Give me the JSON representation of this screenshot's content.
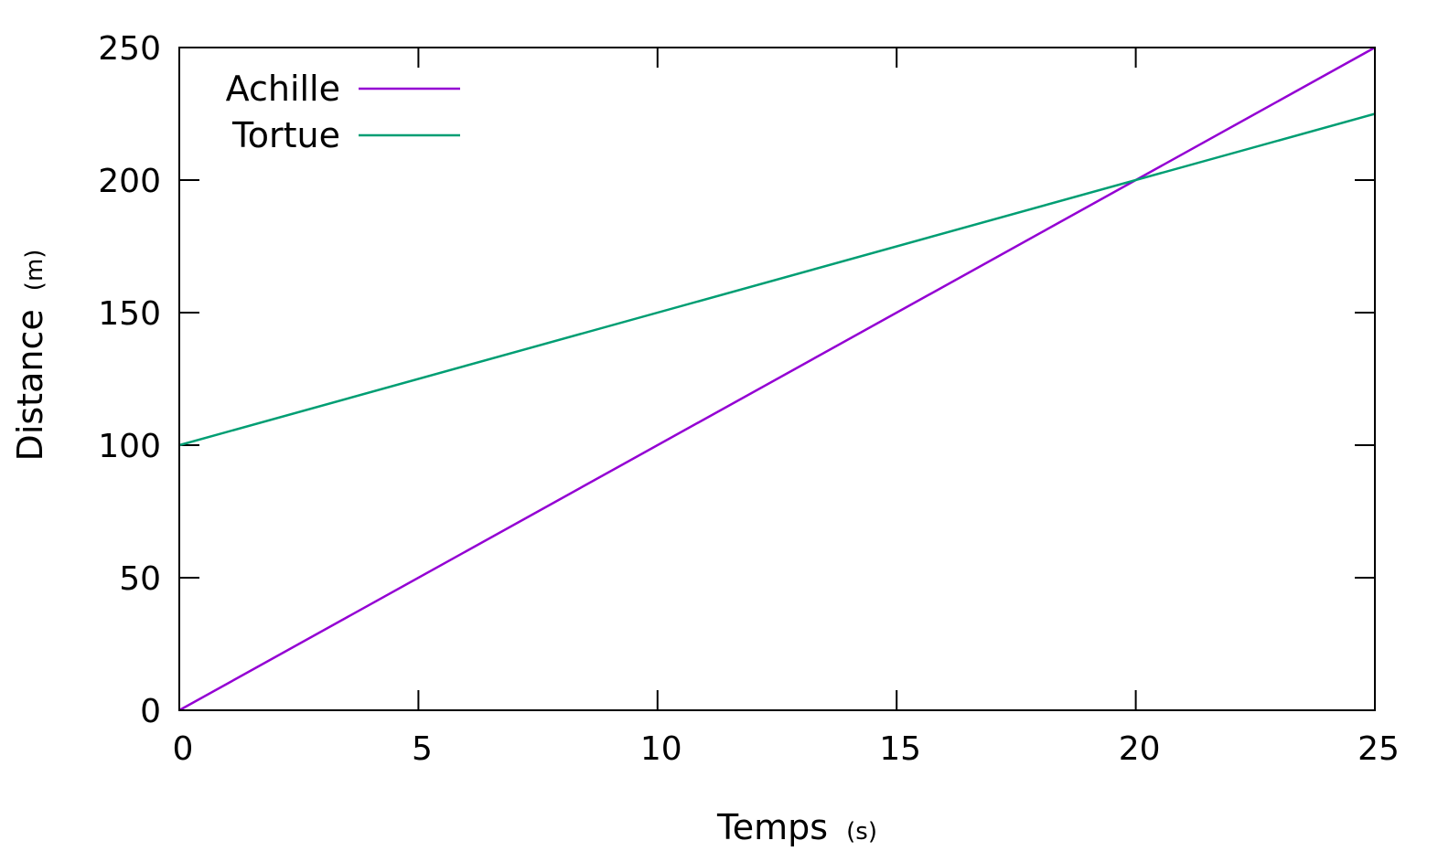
{
  "chart_data": {
    "type": "line",
    "title": "",
    "xlabel": "Temps",
    "xlabel_unit": "(s)",
    "ylabel": "Distance",
    "ylabel_unit": "(m)",
    "xlim": [
      0,
      25
    ],
    "ylim": [
      0,
      250
    ],
    "xticks": [
      0,
      5,
      10,
      15,
      20,
      25
    ],
    "yticks": [
      0,
      50,
      100,
      150,
      200,
      250
    ],
    "grid": false,
    "legend_position": "top-left",
    "series": [
      {
        "name": "Achille",
        "color": "#9400d3",
        "x": [
          0,
          25
        ],
        "y": [
          0,
          250
        ]
      },
      {
        "name": "Tortue",
        "color": "#009e73",
        "x": [
          0,
          25
        ],
        "y": [
          100,
          225
        ]
      }
    ]
  }
}
